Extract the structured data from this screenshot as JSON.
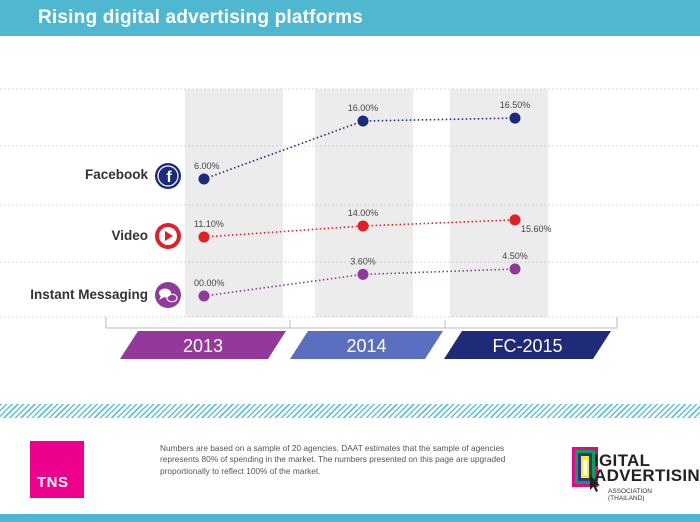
{
  "header": {
    "title": "Rising digital advertising platforms"
  },
  "colors": {
    "header": "#4fb8d0",
    "facebook": "#1b2a7a",
    "video": "#e31e24",
    "instant_messaging": "#8f3a9b",
    "tns": "#ec008c"
  },
  "chart_data": {
    "type": "line",
    "categories": [
      "2013",
      "2014",
      "FC-2015"
    ],
    "series": [
      {
        "name": "Facebook",
        "icon": "facebook-icon",
        "values": [
          6.0,
          16.0,
          16.5
        ],
        "labels": [
          "6.00%",
          "16.00%",
          "16.50%"
        ],
        "color": "#1b2a7a"
      },
      {
        "name": "Video",
        "icon": "play-icon",
        "values": [
          11.1,
          14.0,
          15.6
        ],
        "labels": [
          "11.10%",
          "14.00%",
          "15.60%"
        ],
        "color": "#e31e24"
      },
      {
        "name": "Instant Messaging",
        "icon": "chat-bubbles-icon",
        "values": [
          0.0,
          3.6,
          4.5
        ],
        "labels": [
          "00.00%",
          "3.60%",
          "4.50%"
        ],
        "color": "#8f3a9b"
      }
    ],
    "category_colors": [
      "#94399b",
      "#5a6fc0",
      "#1f2a78"
    ],
    "unit": "%",
    "grid": true
  },
  "footer": {
    "note": "Numbers are based on a sample of 20 agencies. DAAT estimates that the sample of agencies represents 80% of spending in the market. The numbers presented on this page are upgraded proportionally to reflect 100% of the market.",
    "tns_logo": "TNS",
    "daat_logo_line1": "IGITAL",
    "daat_logo_line2": "ADVERTISING",
    "daat_logo_sub": "ASSOCIATION (THAILAND)"
  }
}
